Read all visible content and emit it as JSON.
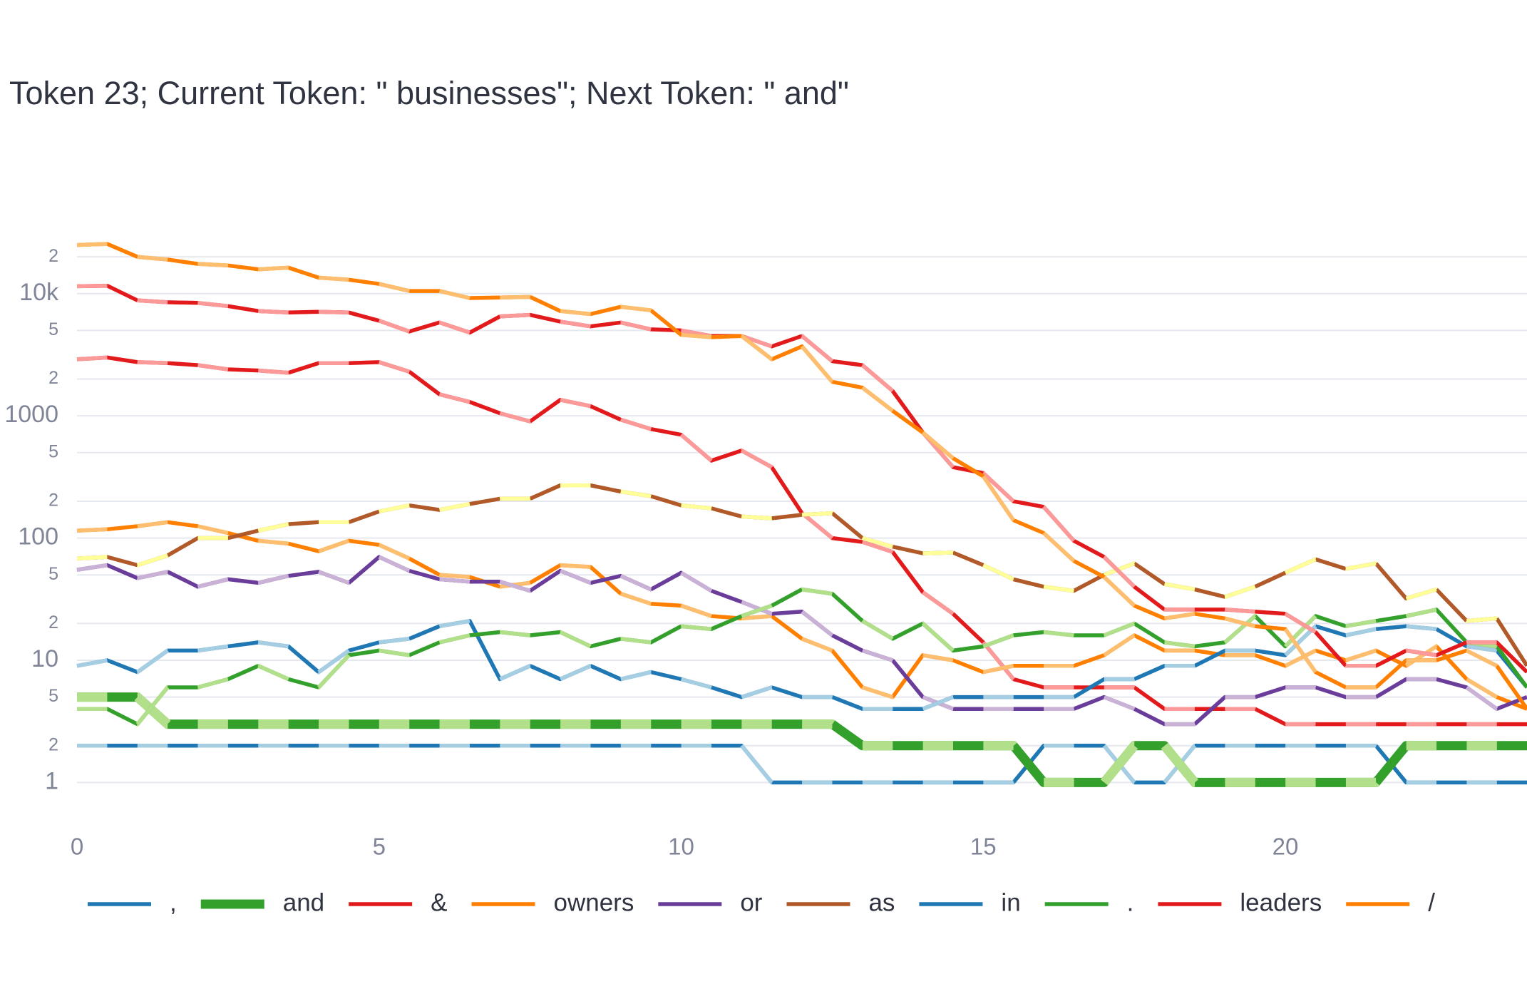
{
  "chart_data": {
    "type": "line",
    "title": "Token 23; Current Token: \" businesses\"; Next Token: \" and\"",
    "log_y": true,
    "grid": true,
    "x": [
      0,
      0.5,
      1,
      1.5,
      2,
      2.5,
      3,
      3.5,
      4,
      4.5,
      5,
      5.5,
      6,
      6.5,
      7,
      7.5,
      8,
      8.5,
      9,
      9.5,
      10,
      10.5,
      11,
      11.5,
      12,
      12.5,
      13,
      13.5,
      14,
      14.5,
      15,
      15.5,
      16,
      16.5,
      17,
      17.5,
      18,
      18.5,
      19,
      19.5,
      20,
      20.5,
      21,
      21.5,
      22,
      22.5,
      23,
      23.5,
      24
    ],
    "xlim": [
      0,
      24
    ],
    "xticks": [
      0,
      5,
      10,
      15,
      20
    ],
    "ylim": [
      0.5,
      30000
    ],
    "yticks": [
      1,
      2,
      5,
      10,
      {
        "value": 20,
        "label": "2"
      },
      {
        "value": 50,
        "label": "5"
      },
      100,
      {
        "value": 200,
        "label": "2"
      },
      {
        "value": 500,
        "label": "5"
      },
      1000,
      {
        "value": 2000,
        "label": "2"
      },
      {
        "value": 5000,
        "label": "5"
      },
      {
        "value": 10000,
        "label": "10k"
      },
      {
        "value": 20000,
        "label": "2"
      }
    ],
    "series": [
      {
        "name": ",",
        "color": "#1f78b4",
        "light_color": "#a6cee3",
        "line_width": 5.5,
        "values": [
          2,
          2,
          2,
          2,
          2,
          2,
          2,
          2,
          2,
          2,
          2,
          2,
          2,
          2,
          2,
          2,
          2,
          2,
          2,
          2,
          2,
          2,
          2,
          1,
          1,
          1,
          1,
          1,
          1,
          1,
          1,
          1,
          2,
          2,
          2,
          1,
          1,
          2,
          2,
          2,
          2,
          2,
          2,
          2,
          1,
          1,
          1,
          1,
          1
        ]
      },
      {
        "name": "and",
        "color": "#33a02c",
        "light_color": "#b2df8a",
        "line_width": 13,
        "values": [
          5,
          5,
          5,
          3,
          3,
          3,
          3,
          3,
          3,
          3,
          3,
          3,
          3,
          3,
          3,
          3,
          3,
          3,
          3,
          3,
          3,
          3,
          3,
          3,
          3,
          3,
          2,
          2,
          2,
          2,
          2,
          2,
          1,
          1,
          1,
          2,
          2,
          1,
          1,
          1,
          1,
          1,
          1,
          1,
          2,
          2,
          2,
          2,
          2
        ]
      },
      {
        "name": "&",
        "color": "#e31a1c",
        "light_color": "#fb9a99",
        "line_width": 5.5,
        "values": [
          2900,
          3000,
          2750,
          2700,
          2600,
          2400,
          2350,
          2250,
          2700,
          2700,
          2750,
          2300,
          1500,
          1300,
          1050,
          900,
          1350,
          1200,
          930,
          780,
          700,
          430,
          520,
          380,
          160,
          100,
          93,
          77,
          36,
          24,
          14,
          7,
          6,
          6,
          6,
          6,
          4,
          4,
          4,
          4,
          3,
          3,
          3,
          3,
          3,
          3,
          3,
          3,
          3
        ]
      },
      {
        "name": "owners",
        "color": "#ff7f00",
        "light_color": "#fdbf6f",
        "line_width": 5.5,
        "values": [
          115,
          118,
          125,
          135,
          125,
          110,
          95,
          90,
          78,
          95,
          88,
          68,
          50,
          48,
          40,
          43,
          60,
          58,
          35,
          29,
          28,
          23,
          22,
          23,
          15,
          12,
          6,
          5,
          11,
          10,
          8,
          9,
          9,
          9,
          11,
          16,
          12,
          12,
          11,
          11,
          9,
          12,
          10,
          12,
          9,
          13,
          7,
          5,
          4
        ]
      },
      {
        "name": "or",
        "color": "#6a3d9a",
        "light_color": "#cab2d6",
        "line_width": 5.5,
        "values": [
          55,
          60,
          47,
          53,
          40,
          46,
          43,
          49,
          53,
          43,
          70,
          54,
          46,
          44,
          44,
          37,
          54,
          43,
          49,
          38,
          52,
          37,
          30,
          24,
          25,
          16,
          12,
          10,
          5,
          4,
          4,
          4,
          4,
          4,
          5,
          4,
          3,
          3,
          5,
          5,
          6,
          6,
          5,
          5,
          7,
          7,
          6,
          4,
          5
        ]
      },
      {
        "name": "as",
        "color": "#b15928",
        "light_color": "#ffff99",
        "line_width": 5.5,
        "values": [
          68,
          70,
          60,
          72,
          100,
          100,
          115,
          130,
          135,
          135,
          165,
          185,
          170,
          190,
          210,
          210,
          270,
          270,
          240,
          220,
          185,
          175,
          150,
          145,
          155,
          160,
          100,
          85,
          75,
          76,
          60,
          46,
          40,
          37,
          50,
          62,
          42,
          38,
          33,
          40,
          52,
          67,
          56,
          62,
          32,
          38,
          21,
          22,
          9
        ]
      },
      {
        "name": "in",
        "color": "#1f78b4",
        "light_color": "#a6cee3",
        "line_width": 5.5,
        "values": [
          9,
          10,
          8,
          12,
          12,
          13,
          14,
          13,
          8,
          12,
          14,
          15,
          19,
          21,
          7,
          9,
          7,
          9,
          7,
          8,
          7,
          6,
          5,
          6,
          5,
          5,
          4,
          4,
          4,
          5,
          5,
          5,
          5,
          5,
          7,
          7,
          9,
          9,
          12,
          12,
          11,
          19,
          16,
          18,
          19,
          18,
          13,
          12,
          6
        ]
      },
      {
        "name": ".",
        "color": "#33a02c",
        "light_color": "#b2df8a",
        "line_width": 5.5,
        "values": [
          4,
          4,
          3,
          6,
          6,
          7,
          9,
          7,
          6,
          11,
          12,
          11,
          14,
          16,
          17,
          16,
          17,
          13,
          15,
          14,
          19,
          18,
          23,
          28,
          38,
          35,
          21,
          15,
          20,
          12,
          13,
          16,
          17,
          16,
          16,
          20,
          14,
          13,
          14,
          23,
          13,
          23,
          19,
          21,
          23,
          26,
          14,
          13,
          6
        ]
      },
      {
        "name": "leaders",
        "color": "#e31a1c",
        "light_color": "#fb9a99",
        "line_width": 5.5,
        "values": [
          11500,
          11600,
          8800,
          8500,
          8400,
          7900,
          7200,
          7000,
          7100,
          7000,
          6000,
          4900,
          5800,
          4800,
          6500,
          6700,
          5900,
          5400,
          5800,
          5100,
          5000,
          4500,
          4500,
          3700,
          4500,
          2800,
          2600,
          1600,
          730,
          380,
          340,
          200,
          180,
          95,
          70,
          40,
          26,
          26,
          26,
          25,
          24,
          17,
          9,
          9,
          12,
          11,
          14,
          14,
          8
        ]
      },
      {
        "name": "/",
        "color": "#ff7f00",
        "light_color": "#fdbf6f",
        "line_width": 5.5,
        "values": [
          25000,
          25500,
          20000,
          19000,
          17500,
          17000,
          15800,
          16300,
          13500,
          13000,
          12000,
          10500,
          10500,
          9200,
          9300,
          9400,
          7200,
          6800,
          7800,
          7300,
          4600,
          4400,
          4500,
          2900,
          3700,
          1900,
          1700,
          1100,
          730,
          450,
          320,
          140,
          110,
          65,
          48,
          28,
          22,
          24,
          22,
          19,
          18,
          8,
          6,
          6,
          10,
          10,
          12,
          9,
          4
        ]
      }
    ]
  }
}
